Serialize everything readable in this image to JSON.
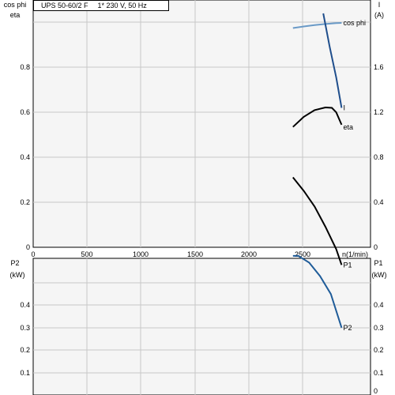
{
  "header": {
    "model": "UPS 50-60/2 F",
    "supply": "1* 230 V, 50 Hz"
  },
  "chart_data": [
    {
      "type": "line",
      "panel": "top",
      "xlabel": "n(1/min)",
      "xlim": [
        0,
        3000
      ],
      "x_ticks": [
        "0",
        "500",
        "1000",
        "1500",
        "2000",
        "2500",
        "n(1/min)"
      ],
      "left_axis": {
        "labels": [
          "cos phi",
          "eta"
        ],
        "ylim": [
          0,
          1.04
        ],
        "ticks": [
          "0",
          "0.2",
          "0.4",
          "0.6",
          "0.8"
        ]
      },
      "right_axis": {
        "labels": [
          "I",
          "(A)"
        ],
        "ylim": [
          0,
          2.08
        ],
        "ticks": [
          "0",
          "0.4",
          "0.8",
          "1.2",
          "1.6"
        ]
      },
      "grid": true,
      "series": [
        {
          "name": "cos phi",
          "axis": "left",
          "color": "#6a9ac7",
          "x": [
            2400,
            2500,
            2600,
            2700,
            2800,
            2850
          ],
          "y": [
            0.975,
            0.982,
            0.988,
            0.993,
            0.997,
            0.998
          ]
        },
        {
          "name": "I",
          "axis": "right",
          "color": "#1f4e8c",
          "x": [
            2680,
            2740,
            2800,
            2850
          ],
          "y": [
            2.08,
            1.78,
            1.51,
            1.24
          ]
        },
        {
          "name": "eta",
          "axis": "left",
          "color": "#000000",
          "x": [
            2400,
            2500,
            2600,
            2700,
            2760,
            2800,
            2850
          ],
          "y": [
            0.535,
            0.58,
            0.61,
            0.622,
            0.62,
            0.6,
            0.545
          ]
        }
      ]
    },
    {
      "type": "line",
      "panel": "bottom",
      "xlim": [
        0,
        3000
      ],
      "left_axis": {
        "labels": [
          "P2",
          "(kW)"
        ],
        "ylim": [
          0,
          0.5
        ],
        "ticks": [
          "0.1",
          "0.2",
          "0.3",
          "0.4"
        ]
      },
      "right_axis": {
        "labels": [
          "P1",
          "(kW)"
        ],
        "ylim": [
          0,
          0.5
        ],
        "ticks": [
          "0",
          "0.1",
          "0.2",
          "0.3",
          "0.4"
        ]
      },
      "grid": true,
      "series": [
        {
          "name": "P1",
          "axis": "left",
          "color": "#000000",
          "x": [
            2400,
            2500,
            2600,
            2700,
            2800,
            2850
          ],
          "y": [
            0.485,
            0.455,
            0.42,
            0.375,
            0.325,
            0.29
          ]
        },
        {
          "name": "P2",
          "axis": "left",
          "color": "#1f5c99",
          "x": [
            2400,
            2450,
            2550,
            2650,
            2750,
            2850
          ],
          "y": [
            0.31,
            0.31,
            0.295,
            0.265,
            0.225,
            0.15
          ]
        }
      ]
    }
  ]
}
